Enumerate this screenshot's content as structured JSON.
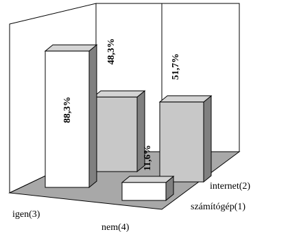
{
  "chart_data": {
    "type": "bar",
    "style": "3d",
    "title": "",
    "xlabel": "",
    "ylabel": "",
    "x_categories": [
      "igen(3)",
      "nem(4)"
    ],
    "depth_series": [
      "számítógép(1)",
      "internet(2)"
    ],
    "grid": false,
    "points": [
      {
        "x": "igen(3)",
        "series": "számítógép(1)",
        "value": 88.3,
        "label": "88,3%"
      },
      {
        "x": "nem(4)",
        "series": "számítógép(1)",
        "value": 11.6,
        "label": "11,6%"
      },
      {
        "x": "igen(3)",
        "series": "internet(2)",
        "value": 48.3,
        "label": "48,3%"
      },
      {
        "x": "nem(4)",
        "series": "internet(2)",
        "value": 51.7,
        "label": "51,7%"
      }
    ],
    "colors": {
      "front_bar_face": "#ffffff",
      "back_bar_face": "#c8c8c8",
      "bar_side": "#808080",
      "bar_top": "#d4d4d4",
      "floor": "#a8a8a8",
      "walls": "#ffffff"
    }
  }
}
